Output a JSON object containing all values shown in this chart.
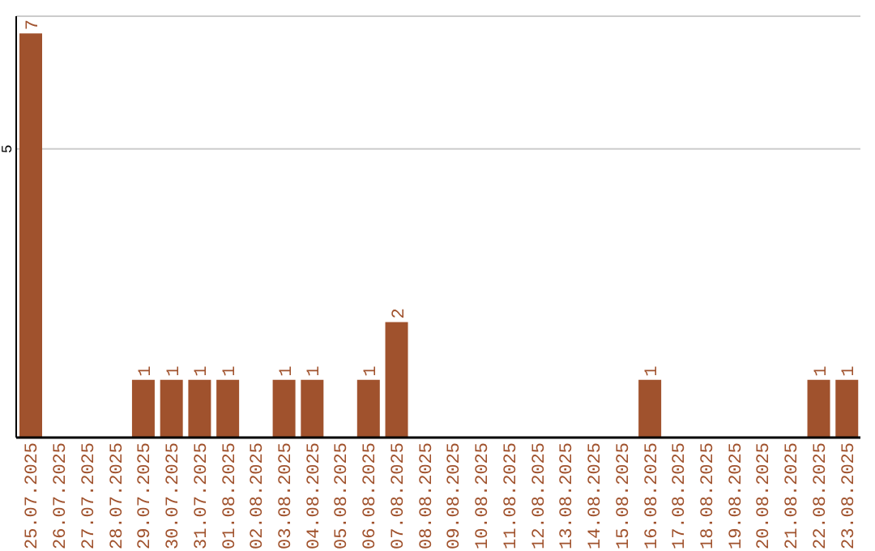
{
  "chart_data": {
    "type": "bar",
    "categories": [
      "25.07.2025",
      "26.07.2025",
      "27.07.2025",
      "28.07.2025",
      "29.07.2025",
      "30.07.2025",
      "31.07.2025",
      "01.08.2025",
      "02.08.2025",
      "03.08.2025",
      "04.08.2025",
      "05.08.2025",
      "06.08.2025",
      "07.08.2025",
      "08.08.2025",
      "09.08.2025",
      "10.08.2025",
      "11.08.2025",
      "12.08.2025",
      "13.08.2025",
      "14.08.2025",
      "15.08.2025",
      "16.08.2025",
      "17.08.2025",
      "18.08.2025",
      "19.08.2025",
      "20.08.2025",
      "21.08.2025",
      "22.08.2025",
      "23.08.2025"
    ],
    "values": [
      7,
      0,
      0,
      0,
      1,
      1,
      1,
      1,
      0,
      1,
      1,
      0,
      1,
      2,
      0,
      0,
      0,
      0,
      0,
      0,
      0,
      0,
      1,
      0,
      0,
      0,
      0,
      0,
      1,
      1
    ],
    "value_labels": [
      "7",
      null,
      null,
      null,
      "1",
      "1",
      "1",
      "1",
      null,
      "1",
      "1",
      null,
      "1",
      "2",
      null,
      null,
      null,
      null,
      null,
      null,
      null,
      null,
      "1",
      null,
      null,
      null,
      null,
      null,
      "1",
      "1"
    ],
    "color": "#a0522d",
    "ylim": [
      0,
      7.3
    ],
    "yticks": [
      5
    ],
    "grid": "y"
  }
}
